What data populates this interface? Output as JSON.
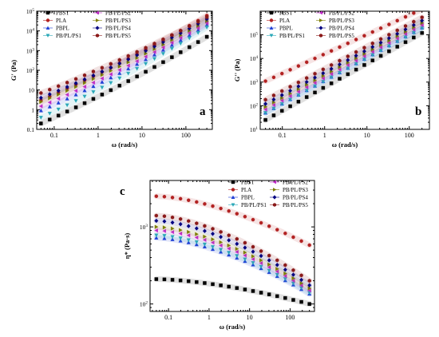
{
  "chart_data": [
    {
      "type": "scatter",
      "panel_label": "a",
      "ylabel": "G' (Pa)",
      "xlabel": "ω (rad/s)",
      "xscale": "log",
      "yscale": "log",
      "xlim": [
        0.04,
        400
      ],
      "ylim": [
        0.1,
        100000
      ],
      "x_tick_labels": [
        "0.1",
        "1",
        "10",
        "100"
      ],
      "y_tick_labels": [
        "0.1",
        "1",
        "10",
        "10²",
        "10³",
        "10⁴",
        "10⁵"
      ],
      "legend_position": "top-left",
      "series": [
        {
          "name": "PBST",
          "color": "#000000",
          "marker": "square",
          "x_range": [
            0.05,
            300
          ],
          "y_range": [
            0.2,
            5000
          ]
        },
        {
          "name": "PLA",
          "color": "#b22222",
          "marker": "circle",
          "x_range": [
            0.05,
            300
          ],
          "y_range": [
            3,
            60000
          ]
        },
        {
          "name": "PBPL",
          "color": "#1f3fd6",
          "marker": "triangle-up",
          "x_range": [
            0.05,
            300
          ],
          "y_range": [
            0.9,
            20000
          ]
        },
        {
          "name": "PB/PL/PS1",
          "color": "#2aa8b8",
          "marker": "triangle-down",
          "x_range": [
            0.05,
            300
          ],
          "y_range": [
            0.4,
            15000
          ]
        },
        {
          "name": "PB/PL/PS2",
          "color": "#c02ac8",
          "marker": "triangle-left",
          "x_range": [
            0.05,
            300
          ],
          "y_range": [
            1.5,
            25000
          ]
        },
        {
          "name": "PB/PL/PS3",
          "color": "#7d7d00",
          "marker": "triangle-right",
          "x_range": [
            0.05,
            300
          ],
          "y_range": [
            2.5,
            32000
          ]
        },
        {
          "name": "PB/PL/PS4",
          "color": "#000080",
          "marker": "diamond",
          "x_range": [
            0.05,
            300
          ],
          "y_range": [
            4,
            40000
          ]
        },
        {
          "name": "PB/PL/PS5",
          "color": "#8b1a1a",
          "marker": "hexagon",
          "x_range": [
            0.05,
            300
          ],
          "y_range": [
            7,
            50000
          ]
        }
      ]
    },
    {
      "type": "scatter",
      "panel_label": "b",
      "ylabel": "G'' (Pa)",
      "xlabel": "ω (rad/s)",
      "xscale": "log",
      "yscale": "log",
      "xlim": [
        0.03,
        300
      ],
      "ylim": [
        1,
        100000
      ],
      "x_tick_labels": [
        "0.1",
        "1",
        "10",
        "100"
      ],
      "y_tick_labels": [
        "10¹",
        "10²",
        "10³",
        "10⁴",
        "10⁵"
      ],
      "legend_position": "top-left",
      "series": [
        {
          "name": "PBST",
          "color": "#000000",
          "marker": "square",
          "x_range": [
            0.04,
            200
          ],
          "y_range": [
            2.5,
            12000
          ]
        },
        {
          "name": "PLA",
          "color": "#b22222",
          "marker": "circle",
          "x_range": [
            0.04,
            200
          ],
          "y_range": [
            110,
            120000
          ]
        },
        {
          "name": "PBPL",
          "color": "#1f3fd6",
          "marker": "triangle-up",
          "x_range": [
            0.04,
            200
          ],
          "y_range": [
            5,
            20000
          ]
        },
        {
          "name": "PB/PL/PS1",
          "color": "#2aa8b8",
          "marker": "triangle-down",
          "x_range": [
            0.04,
            200
          ],
          "y_range": [
            5,
            19000
          ]
        },
        {
          "name": "PB/PL/PS2",
          "color": "#c02ac8",
          "marker": "triangle-left",
          "x_range": [
            0.04,
            200
          ],
          "y_range": [
            7,
            26000
          ]
        },
        {
          "name": "PB/PL/PS3",
          "color": "#7d7d00",
          "marker": "triangle-right",
          "x_range": [
            0.04,
            200
          ],
          "y_range": [
            9,
            32000
          ]
        },
        {
          "name": "PB/PL/PS4",
          "color": "#000080",
          "marker": "diamond",
          "x_range": [
            0.04,
            200
          ],
          "y_range": [
            12,
            40000
          ]
        },
        {
          "name": "PB/PL/PS5",
          "color": "#8b1a1a",
          "marker": "hexagon",
          "x_range": [
            0.04,
            200
          ],
          "y_range": [
            18,
            55000
          ]
        }
      ]
    },
    {
      "type": "scatter",
      "panel_label": "c",
      "ylabel": "η* (Pa·s)",
      "xlabel": "ω (rad/s)",
      "xscale": "log",
      "yscale": "log",
      "xlim": [
        0.035,
        400
      ],
      "ylim": [
        80,
        4000
      ],
      "x_tick_labels": [
        "0.1",
        "1",
        "10",
        "100"
      ],
      "y_tick_labels": [
        "10²",
        "10³"
      ],
      "legend_position": "top-right",
      "series": [
        {
          "name": "PBST",
          "color": "#000000",
          "marker": "square",
          "x_range": [
            0.05,
            300
          ],
          "y_range": [
            210,
            100
          ]
        },
        {
          "name": "PLA",
          "color": "#b22222",
          "marker": "circle",
          "x_range": [
            0.05,
            300
          ],
          "y_range": [
            2500,
            580
          ]
        },
        {
          "name": "PBPL",
          "color": "#1f3fd6",
          "marker": "triangle-up",
          "x_range": [
            0.05,
            300
          ],
          "y_range": [
            720,
            135
          ]
        },
        {
          "name": "PB/PL/PS1",
          "color": "#2aa8b8",
          "marker": "triangle-down",
          "x_range": [
            0.05,
            300
          ],
          "y_range": [
            780,
            140
          ]
        },
        {
          "name": "PB/PL/PS2",
          "color": "#c02ac8",
          "marker": "triangle-left",
          "x_range": [
            0.05,
            300
          ],
          "y_range": [
            900,
            150
          ]
        },
        {
          "name": "PB/PL/PS3",
          "color": "#7d7d00",
          "marker": "triangle-right",
          "x_range": [
            0.05,
            300
          ],
          "y_range": [
            1000,
            160
          ]
        },
        {
          "name": "PB/PL/PS4",
          "color": "#000080",
          "marker": "diamond",
          "x_range": [
            0.05,
            300
          ],
          "y_range": [
            1200,
            175
          ]
        },
        {
          "name": "PB/PL/PS5",
          "color": "#8b1a1a",
          "marker": "hexagon",
          "x_range": [
            0.05,
            300
          ],
          "y_range": [
            1400,
            200
          ]
        }
      ]
    }
  ]
}
